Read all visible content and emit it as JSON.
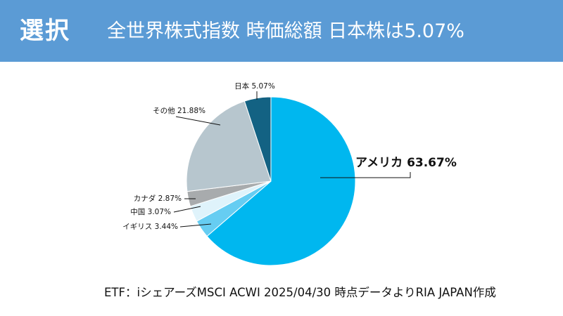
{
  "header": {
    "tag": "選択",
    "title": "全世界株式指数 時価総額 日本株は5.07%"
  },
  "colors": {
    "header_bg": "#5b9bd5",
    "アメリカ": "#00b7ef",
    "イギリス": "#66cdf2",
    "中国": "#dff3fb",
    "カナダ": "#a8abad",
    "その他": "#b7c6ce",
    "日本": "#136283"
  },
  "chart_data": {
    "type": "pie",
    "title": "全世界株式指数 時価総額 日本株は5.07%",
    "start": "12 o'clock",
    "direction": "clockwise",
    "slices": [
      {
        "label": "アメリカ",
        "value": 63.67,
        "text": "アメリカ 63.67%"
      },
      {
        "label": "イギリス",
        "value": 3.44,
        "text": "イギリス 3.44%"
      },
      {
        "label": "中国",
        "value": 3.07,
        "text": "中国 3.07%"
      },
      {
        "label": "カナダ",
        "value": 2.87,
        "text": "カナダ 2.87%"
      },
      {
        "label": "その他",
        "value": 21.88,
        "text": "その他 21.88%"
      },
      {
        "label": "日本",
        "value": 5.07,
        "text": "日本 5.07%"
      }
    ]
  },
  "source": "ETF：iシェアーズMSCI ACWI 2025/04/30 時点データよりRIA JAPAN作成"
}
